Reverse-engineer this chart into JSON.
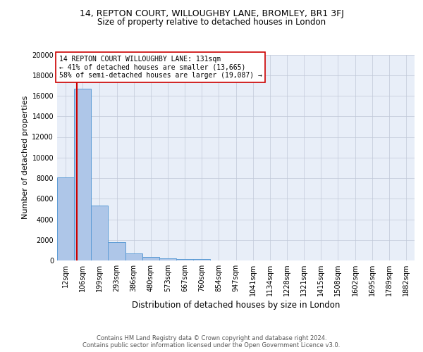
{
  "title": "14, REPTON COURT, WILLOUGHBY LANE, BROMLEY, BR1 3FJ",
  "subtitle": "Size of property relative to detached houses in London",
  "xlabel": "Distribution of detached houses by size in London",
  "ylabel": "Number of detached properties",
  "footer_line1": "Contains HM Land Registry data © Crown copyright and database right 2024.",
  "footer_line2": "Contains public sector information licensed under the Open Government Licence v3.0.",
  "annotation_line1": "14 REPTON COURT WILLOUGHBY LANE: 131sqm",
  "annotation_line2": "← 41% of detached houses are smaller (13,665)",
  "annotation_line3": "58% of semi-detached houses are larger (19,087) →",
  "bar_labels": [
    "12sqm",
    "106sqm",
    "199sqm",
    "293sqm",
    "386sqm",
    "480sqm",
    "573sqm",
    "667sqm",
    "760sqm",
    "854sqm",
    "947sqm",
    "1041sqm",
    "1134sqm",
    "1228sqm",
    "1321sqm",
    "1415sqm",
    "1508sqm",
    "1602sqm",
    "1695sqm",
    "1789sqm",
    "1882sqm"
  ],
  "bar_values": [
    8050,
    16700,
    5300,
    1750,
    700,
    370,
    210,
    130,
    120,
    0,
    0,
    0,
    0,
    0,
    0,
    0,
    0,
    0,
    0,
    0,
    0
  ],
  "bar_color": "#aec6e8",
  "bar_edgecolor": "#5b9bd5",
  "red_line_color": "#cc0000",
  "background_color": "#e8eef8",
  "grid_color": "#c0c8d8",
  "ylim": [
    0,
    20000
  ],
  "yticks": [
    0,
    2000,
    4000,
    6000,
    8000,
    10000,
    12000,
    14000,
    16000,
    18000,
    20000
  ],
  "title_fontsize": 9,
  "subtitle_fontsize": 8.5,
  "ylabel_fontsize": 8,
  "xlabel_fontsize": 8.5,
  "tick_fontsize": 7,
  "annotation_fontsize": 7,
  "footer_fontsize": 6,
  "footer_color": "#555555"
}
